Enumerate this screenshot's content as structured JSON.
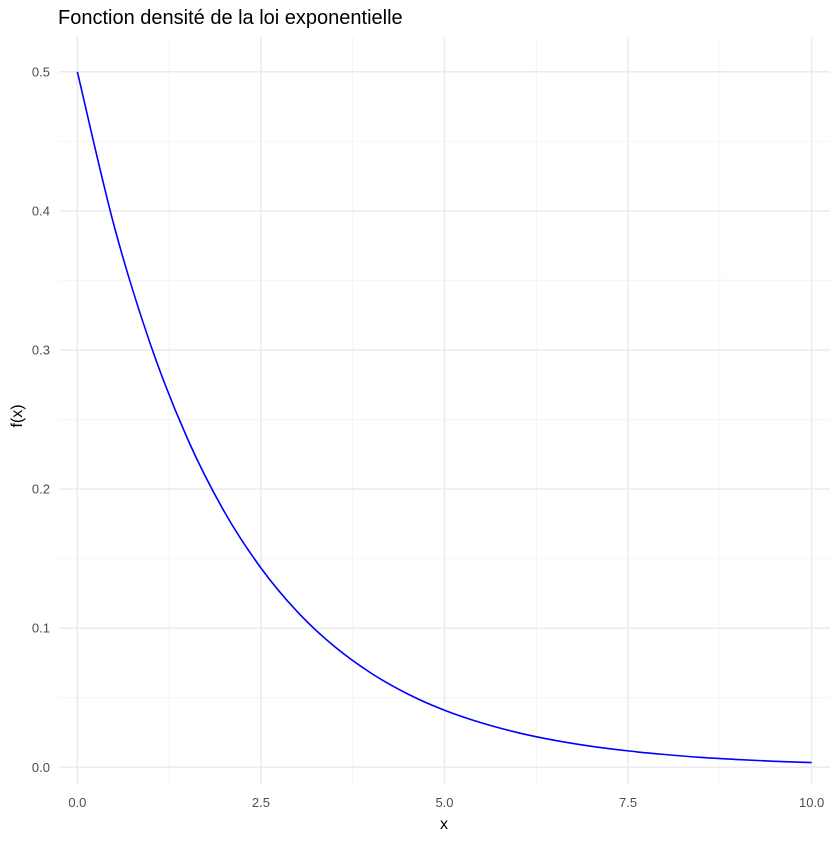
{
  "chart_data": {
    "type": "line",
    "title": "Fonction densité de la loi exponentielle",
    "xlabel": "x",
    "ylabel": "f(x)",
    "xlim": [
      -0.25,
      10.25
    ],
    "ylim": [
      -0.012,
      0.525
    ],
    "x_ticks": [
      0.0,
      2.5,
      5.0,
      7.5,
      10.0
    ],
    "x_tick_labels": [
      "0.0",
      "2.5",
      "5.0",
      "7.5",
      "10.0"
    ],
    "y_ticks": [
      0.0,
      0.1,
      0.2,
      0.3,
      0.4,
      0.5
    ],
    "y_tick_labels": [
      "0.0",
      "0.1",
      "0.2",
      "0.3",
      "0.4",
      "0.5"
    ],
    "grid": true,
    "legend": "none",
    "series": [
      {
        "color": "#0000ff",
        "x": [
          0.0,
          0.5,
          1.0,
          1.5,
          2.0,
          2.5,
          3.0,
          3.5,
          4.0,
          4.5,
          5.0,
          5.5,
          6.0,
          6.5,
          7.0,
          7.5,
          8.0,
          8.5,
          9.0,
          9.5,
          10.0
        ],
        "y": [
          0.5,
          0.3894,
          0.3033,
          0.2362,
          0.1839,
          0.1433,
          0.1116,
          0.0869,
          0.0677,
          0.0527,
          0.041,
          0.032,
          0.0249,
          0.0194,
          0.0151,
          0.0118,
          0.0092,
          0.0071,
          0.0056,
          0.0043,
          0.0034
        ]
      }
    ]
  },
  "colors": {
    "grid_major": "#ebebeb",
    "grid_minor": "#f4f4f4",
    "background": "#ffffff"
  }
}
